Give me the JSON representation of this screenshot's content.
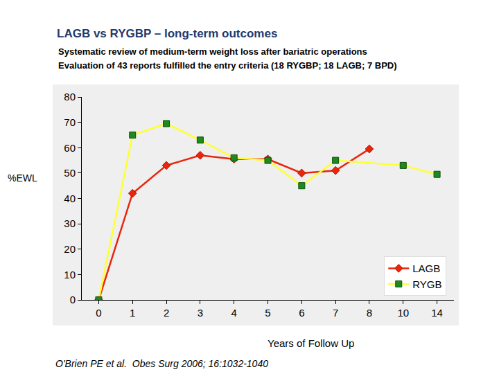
{
  "chart_data": {
    "type": "line",
    "title": "LAGB vs RYGBP – long-term outcomes",
    "subtitle": [
      "Systematic review of medium-term weight loss after bariatric operations",
      "Evaluation of 43 reports fulfilled the entry criteria (18 RYGBP; 18 LAGB; 7 BPD)"
    ],
    "x_label": "Years of Follow Up",
    "y_label": "%EWL",
    "annotations": [
      "O'Brien PE et al.  Obes Surg 2006; 16:1032-1040"
    ],
    "categories": [
      "0",
      "1",
      "2",
      "3",
      "4",
      "5",
      "6",
      "7",
      "8",
      "10",
      "14"
    ],
    "series": [
      {
        "name": "LAGB",
        "color": "#e8260c",
        "marker": "diamond",
        "line_style": "solid",
        "values": [
          0,
          42,
          53,
          57,
          55.5,
          55.5,
          50,
          51,
          59.5,
          null,
          null
        ]
      },
      {
        "name": "RYGB",
        "color": "#ffff33",
        "marker": "square",
        "line_style": "solid",
        "values": [
          0,
          65,
          69.5,
          63,
          56,
          55,
          45,
          55,
          null,
          53,
          49.5
        ]
      }
    ],
    "ylim": [
      0,
      80
    ],
    "yticks": [
      0,
      10,
      20,
      30,
      40,
      50,
      60,
      70,
      80
    ],
    "grid": false,
    "legend": "lower right"
  }
}
